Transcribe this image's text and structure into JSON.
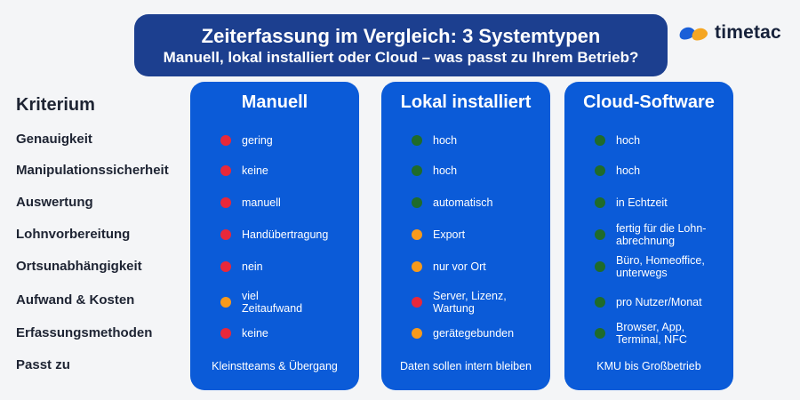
{
  "colors": {
    "red": "#e8283a",
    "orange": "#f79a1c",
    "green": "#1f6b2a",
    "column_bg": "#0b5bd8",
    "header_bg": "#1c3f8f"
  },
  "header": {
    "title": "Zeiterfassung im Vergleich: 3 Systemtypen",
    "subtitle": "Manuell, lokal installiert oder Cloud – was passt zu Ihrem Betrieb?"
  },
  "logo": {
    "text": "timetac"
  },
  "criteria": {
    "heading": "Kriterium",
    "items": [
      "Genauigkeit",
      "Manipulationssicherheit",
      "Auswertung",
      "Lohnvorbereitung",
      "Ortsunabhängigkeit",
      "Aufwand & Kosten",
      "Erfassungsmethoden",
      "Passt zu"
    ]
  },
  "columns": [
    {
      "title": "Manuell",
      "rows": [
        {
          "status": "red",
          "lines": [
            "gering"
          ]
        },
        {
          "status": "red",
          "lines": [
            "keine"
          ]
        },
        {
          "status": "red",
          "lines": [
            "manuell"
          ]
        },
        {
          "status": "red",
          "lines": [
            "Handübertragung"
          ]
        },
        {
          "status": "red",
          "lines": [
            "nein"
          ]
        },
        {
          "status": "orange",
          "lines": [
            "viel",
            "Zeitaufwand"
          ]
        },
        {
          "status": "red",
          "lines": [
            "keine"
          ]
        }
      ],
      "fit": "Kleinstteams & Übergang"
    },
    {
      "title": "Lokal installiert",
      "rows": [
        {
          "status": "green",
          "lines": [
            "hoch"
          ]
        },
        {
          "status": "green",
          "lines": [
            "hoch"
          ]
        },
        {
          "status": "green",
          "lines": [
            "automatisch"
          ]
        },
        {
          "status": "orange",
          "lines": [
            "Export"
          ]
        },
        {
          "status": "orange",
          "lines": [
            "nur vor Ort"
          ]
        },
        {
          "status": "red",
          "lines": [
            "Server, Lizenz,",
            "Wartung"
          ]
        },
        {
          "status": "orange",
          "lines": [
            "gerätegebunden"
          ]
        }
      ],
      "fit": "Daten sollen intern bleiben"
    },
    {
      "title": "Cloud-Software",
      "rows": [
        {
          "status": "green",
          "lines": [
            "hoch"
          ]
        },
        {
          "status": "green",
          "lines": [
            "hoch"
          ]
        },
        {
          "status": "green",
          "lines": [
            "in Echtzeit"
          ]
        },
        {
          "status": "green",
          "lines": [
            "fertig für die Lohn-",
            "abrechnung"
          ]
        },
        {
          "status": "green",
          "lines": [
            "Büro, Homeoffice,",
            "unterwegs"
          ]
        },
        {
          "status": "green",
          "lines": [
            "pro Nutzer/Monat"
          ]
        },
        {
          "status": "green",
          "lines": [
            "Browser, App,",
            "Terminal, NFC"
          ]
        }
      ],
      "fit": "KMU bis Großbetrieb"
    }
  ]
}
